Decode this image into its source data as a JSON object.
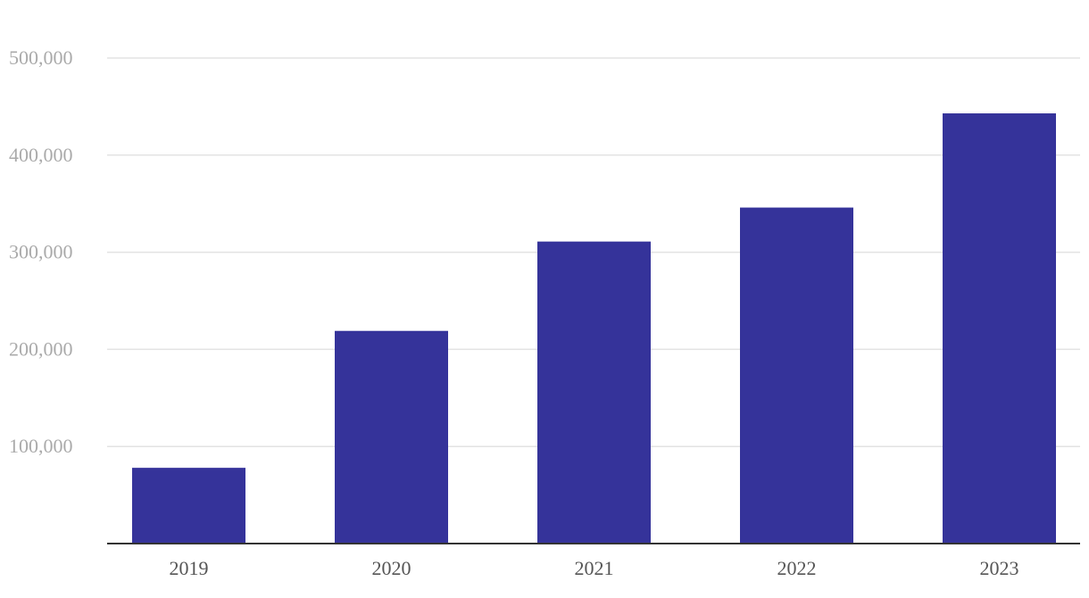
{
  "chart_data": {
    "type": "bar",
    "categories": [
      "2019",
      "2020",
      "2021",
      "2022",
      "2023"
    ],
    "values": [
      78000,
      219000,
      311000,
      346000,
      443000
    ],
    "color": "#35339a",
    "ylim": [
      0,
      500000
    ],
    "yticks": [
      {
        "value": 100000,
        "label": "100,000"
      },
      {
        "value": 200000,
        "label": "200,000"
      },
      {
        "value": 300000,
        "label": "300,000"
      },
      {
        "value": 400000,
        "label": "400,000"
      },
      {
        "value": 500000,
        "label": "500,000"
      }
    ],
    "grid": true
  }
}
